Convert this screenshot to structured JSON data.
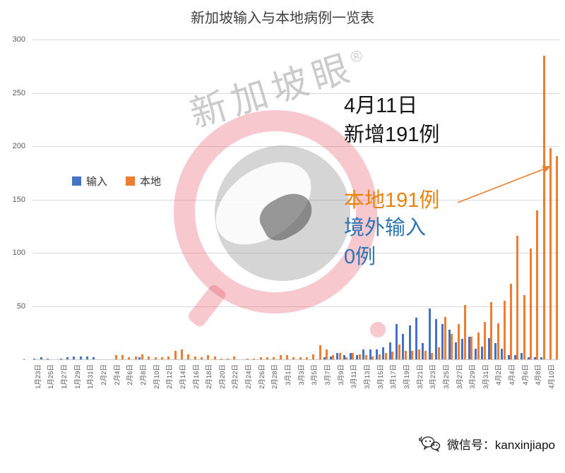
{
  "title": "新加坡输入与本地病例一览表",
  "watermark": {
    "text": "新加坡眼",
    "reg": "®"
  },
  "legend": [
    {
      "label": "输入",
      "color": "#4472C4"
    },
    {
      "label": "本地",
      "color": "#ED7D31"
    }
  ],
  "annotations": {
    "headline_line1": "4月11日",
    "headline_line2": "新增191例",
    "local_label": "本地191例",
    "imported_label_line1": "境外输入",
    "imported_label_line2": "0例",
    "arrow_color": "#ED7D31"
  },
  "footer": {
    "wechat_label": "微信号：kanxinjiapo"
  },
  "chart_data": {
    "type": "bar",
    "title": "新加坡输入与本地病例一览表",
    "xlabel": "",
    "ylabel": "",
    "ylim": [
      0,
      300
    ],
    "yticks": [
      0,
      50,
      100,
      150,
      200,
      250,
      300
    ],
    "ytick_labels": [
      "-",
      "50",
      "100",
      "150",
      "200",
      "250",
      "300"
    ],
    "grid": true,
    "legend_position": "inside-left",
    "x_label_every": 2,
    "x": [
      "1月23日",
      "1月24日",
      "1月25日",
      "1月26日",
      "1月27日",
      "1月28日",
      "1月29日",
      "1月30日",
      "1月31日",
      "2月1日",
      "2月2日",
      "2月3日",
      "2月4日",
      "2月5日",
      "2月6日",
      "2月7日",
      "2月8日",
      "2月9日",
      "2月10日",
      "2月11日",
      "2月12日",
      "2月13日",
      "2月14日",
      "2月15日",
      "2月16日",
      "2月17日",
      "2月18日",
      "2月19日",
      "2月20日",
      "2月21日",
      "2月22日",
      "2月23日",
      "2月24日",
      "2月25日",
      "2月26日",
      "2月27日",
      "2月28日",
      "2月29日",
      "3月1日",
      "3月2日",
      "3月3日",
      "3月4日",
      "3月5日",
      "3月6日",
      "3月7日",
      "3月8日",
      "3月9日",
      "3月10日",
      "3月11日",
      "3月12日",
      "3月13日",
      "3月14日",
      "3月15日",
      "3月16日",
      "3月17日",
      "3月18日",
      "3月19日",
      "3月20日",
      "3月21日",
      "3月22日",
      "3月23日",
      "3月24日",
      "3月25日",
      "3月26日",
      "3月27日",
      "3月28日",
      "3月29日",
      "3月30日",
      "3月31日",
      "4月1日",
      "4月2日",
      "4月3日",
      "4月4日",
      "4月5日",
      "4月6日",
      "4月7日",
      "4月8日",
      "4月9日",
      "4月10日",
      "4月11日"
    ],
    "series": [
      {
        "name": "输入",
        "color": "#4472C4",
        "values": [
          1,
          2,
          1,
          0,
          1,
          2,
          3,
          3,
          3,
          2,
          0,
          0,
          0,
          0,
          0,
          0,
          2,
          0,
          0,
          0,
          0,
          0,
          0,
          0,
          0,
          0,
          0,
          0,
          0,
          0,
          0,
          0,
          0,
          0,
          0,
          0,
          0,
          0,
          0,
          0,
          0,
          0,
          0,
          0,
          2,
          3,
          6,
          4,
          6,
          4,
          9,
          9,
          9,
          11,
          16,
          33,
          24,
          32,
          39,
          15,
          48,
          38,
          33,
          28,
          16,
          19,
          21,
          10,
          12,
          20,
          15,
          10,
          4,
          4,
          6,
          2,
          2,
          2,
          0,
          0
        ]
      },
      {
        "name": "本地",
        "color": "#ED7D31",
        "values": [
          0,
          0,
          0,
          0,
          0,
          0,
          0,
          0,
          0,
          0,
          0,
          0,
          4,
          4,
          2,
          3,
          5,
          3,
          2,
          2,
          3,
          8,
          9,
          5,
          3,
          2,
          4,
          3,
          1,
          1,
          3,
          0,
          1,
          1,
          2,
          2,
          2,
          4,
          4,
          2,
          2,
          2,
          5,
          13,
          9,
          4,
          6,
          2,
          6,
          5,
          4,
          3,
          5,
          6,
          7,
          14,
          8,
          8,
          9,
          8,
          6,
          11,
          40,
          24,
          33,
          51,
          21,
          25,
          35,
          54,
          34,
          55,
          71,
          116,
          60,
          104,
          140,
          285,
          198,
          191
        ]
      }
    ]
  }
}
